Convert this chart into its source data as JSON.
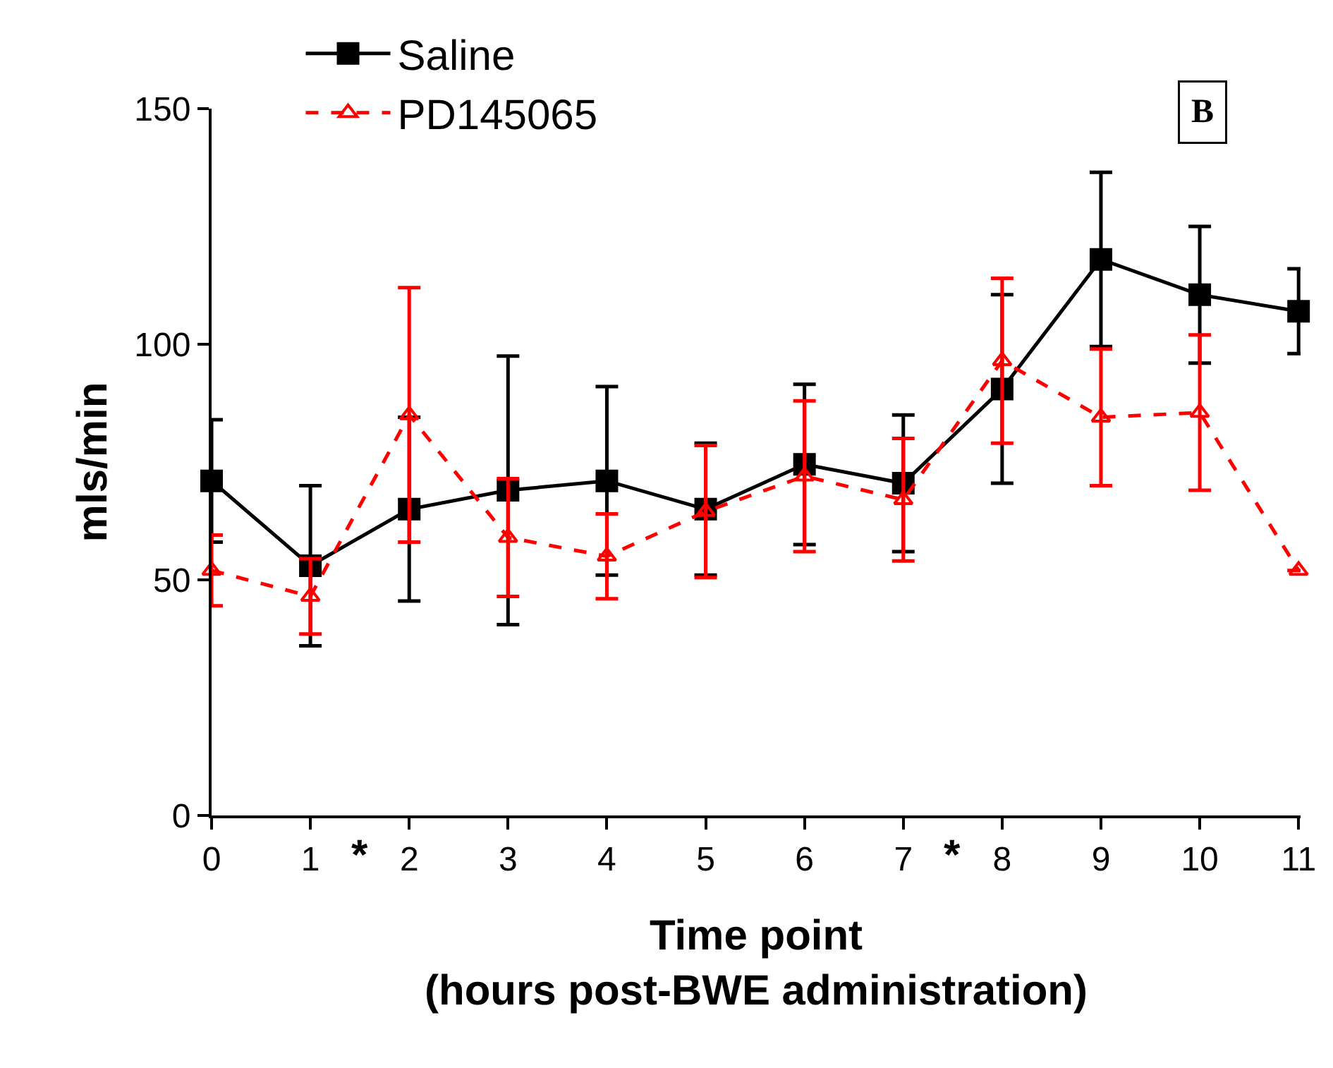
{
  "chart_data": {
    "type": "line",
    "x": [
      0,
      1,
      2,
      3,
      4,
      5,
      6,
      7,
      8,
      9,
      10,
      11
    ],
    "xlabel": "Time point\n(hours post-BWE administration)",
    "ylabel": "mls/min",
    "xlim": [
      0,
      11
    ],
    "xticks": [
      0,
      1,
      2,
      3,
      4,
      5,
      6,
      7,
      8,
      9,
      10,
      11
    ],
    "ylim": [
      0,
      150
    ],
    "yticks": [
      0,
      50,
      100,
      150
    ],
    "legend": "top left",
    "series": [
      {
        "name": "Saline",
        "color": "#000000",
        "marker": "square",
        "line_style": "solid",
        "values": [
          71,
          53,
          65,
          69,
          71,
          65,
          74.5,
          70.5,
          90.5,
          118,
          110.5,
          107
        ],
        "errors": [
          13,
          17,
          19.5,
          28.5,
          20,
          14,
          17,
          14.5,
          20,
          18.5,
          14.5,
          9
        ]
      },
      {
        "name": "PD145065",
        "color": "#ff0000",
        "marker": "triangle",
        "line_style": "dashed",
        "values": [
          52,
          46.5,
          85,
          59,
          55,
          64.5,
          72,
          67,
          96.5,
          84.5,
          85.5,
          52
        ],
        "errors": [
          7.5,
          8,
          27,
          12.5,
          9,
          14,
          16,
          13,
          17.5,
          14.5,
          16.5,
          null
        ]
      }
    ],
    "annotations": [
      "B",
      "*",
      "*"
    ]
  }
}
